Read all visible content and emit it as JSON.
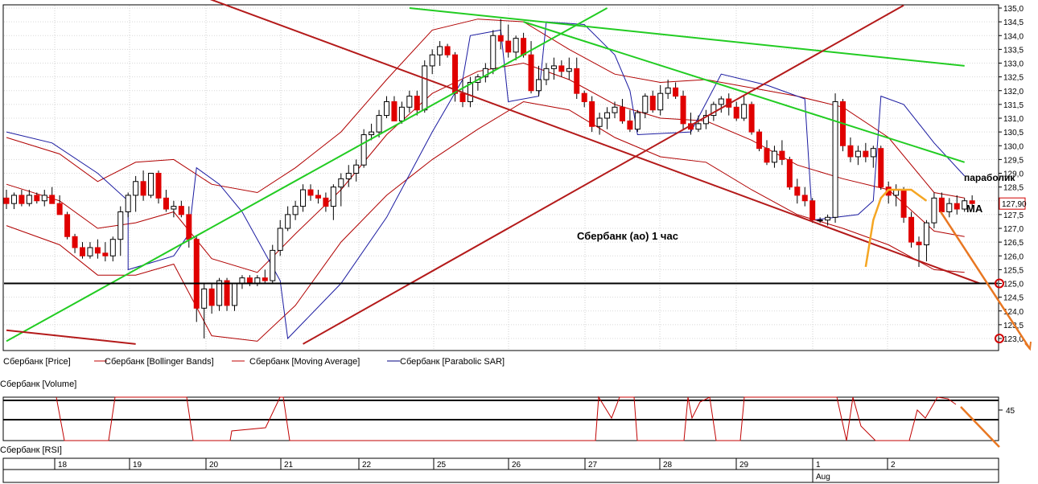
{
  "chart_data": {
    "type": "candlestick",
    "instrument": "Сбербанк",
    "ylim": [
      122.8,
      135.1
    ],
    "y_ticks": [
      "135,0",
      "134,5",
      "134,0",
      "133,5",
      "133,0",
      "132,5",
      "132,0",
      "131,5",
      "131,0",
      "130,5",
      "130,0",
      "129,5",
      "129,0",
      "128,5",
      "128,0",
      "127,5",
      "127,0",
      "126,5",
      "126,0",
      "125,5",
      "125,0",
      "124,5",
      "124,0",
      "123,5",
      "123,0"
    ],
    "y_tick_values": [
      135.0,
      134.5,
      134.0,
      133.5,
      133.0,
      132.5,
      132.0,
      131.5,
      131.0,
      130.5,
      130.0,
      129.5,
      129.0,
      128.5,
      128.0,
      127.5,
      127.0,
      126.5,
      126.0,
      125.5,
      125.0,
      124.5,
      124.0,
      123.5,
      123.0
    ],
    "last_price_label": "127,90",
    "last_price": 127.9,
    "support_level": 125.0,
    "target_markers": [
      125.0,
      123.0
    ],
    "day_labels": [
      "18",
      "19",
      "20",
      "21",
      "22",
      "25",
      "26",
      "27",
      "28",
      "29",
      "1",
      "2"
    ],
    "month_label": "Aug",
    "legend": [
      "Сбербанк [Price]",
      "Сбербанк [Bollinger Bands]",
      "Сбербанк [Moving Average]",
      "Сбербанк [Parabolic SAR]"
    ],
    "candles": [
      [
        128.1,
        128.4,
        127.7,
        127.9
      ],
      [
        127.9,
        128.3,
        127.7,
        128.2
      ],
      [
        128.2,
        128.4,
        127.8,
        127.9
      ],
      [
        127.9,
        128.4,
        127.8,
        128.2
      ],
      [
        128.2,
        128.3,
        127.9,
        128.0
      ],
      [
        128.0,
        128.4,
        127.8,
        128.2
      ],
      [
        128.2,
        128.5,
        127.9,
        127.9
      ],
      [
        127.9,
        128.2,
        127.5,
        127.5
      ],
      [
        127.5,
        127.6,
        126.6,
        126.7
      ],
      [
        126.7,
        126.8,
        126.1,
        126.3
      ],
      [
        126.3,
        126.5,
        125.9,
        126.0
      ],
      [
        126.0,
        126.5,
        125.9,
        126.3
      ],
      [
        126.3,
        126.6,
        125.9,
        126.1
      ],
      [
        126.1,
        126.5,
        125.8,
        126.0
      ],
      [
        126.0,
        126.7,
        125.8,
        126.6
      ],
      [
        126.6,
        127.8,
        126.0,
        127.6
      ],
      [
        127.6,
        128.3,
        127.4,
        128.2
      ],
      [
        128.2,
        128.9,
        127.6,
        128.7
      ],
      [
        128.7,
        129.1,
        128.0,
        128.2
      ],
      [
        128.2,
        129.0,
        128.1,
        129.0
      ],
      [
        129.0,
        129.1,
        127.9,
        128.1
      ],
      [
        128.1,
        128.4,
        127.6,
        127.7
      ],
      [
        127.7,
        128.0,
        127.4,
        127.8
      ],
      [
        127.8,
        128.0,
        127.4,
        127.5
      ],
      [
        127.5,
        127.8,
        126.3,
        126.6
      ],
      [
        126.6,
        126.7,
        123.6,
        124.1
      ],
      [
        124.1,
        125.0,
        123.0,
        124.8
      ],
      [
        124.8,
        125.0,
        123.9,
        124.2
      ],
      [
        124.2,
        125.2,
        124.0,
        125.1
      ],
      [
        125.1,
        125.2,
        124.0,
        124.2
      ],
      [
        124.2,
        125.0,
        124.0,
        125.0
      ],
      [
        125.0,
        125.3,
        124.8,
        125.2
      ],
      [
        125.2,
        125.3,
        124.9,
        125.0
      ],
      [
        125.0,
        125.3,
        124.9,
        125.2
      ],
      [
        125.2,
        125.5,
        125.0,
        125.1
      ],
      [
        125.1,
        126.4,
        125.0,
        126.2
      ],
      [
        126.2,
        127.3,
        126.0,
        127.0
      ],
      [
        127.0,
        127.8,
        126.9,
        127.5
      ],
      [
        127.5,
        128.0,
        127.3,
        127.8
      ],
      [
        127.8,
        128.6,
        127.6,
        128.4
      ],
      [
        128.4,
        128.6,
        128.0,
        128.2
      ],
      [
        128.2,
        128.4,
        127.9,
        128.1
      ],
      [
        128.1,
        128.3,
        127.6,
        127.8
      ],
      [
        127.8,
        128.6,
        127.3,
        128.5
      ],
      [
        128.5,
        129.0,
        127.8,
        128.8
      ],
      [
        128.8,
        129.3,
        128.5,
        129.0
      ],
      [
        129.0,
        129.5,
        128.7,
        129.3
      ],
      [
        129.3,
        130.6,
        129.2,
        130.4
      ],
      [
        130.4,
        130.8,
        130.2,
        130.5
      ],
      [
        130.5,
        131.3,
        130.3,
        131.1
      ],
      [
        131.1,
        131.8,
        131.0,
        131.6
      ],
      [
        131.6,
        131.8,
        130.9,
        130.9
      ],
      [
        130.9,
        131.6,
        130.8,
        131.4
      ],
      [
        131.4,
        132.0,
        131.2,
        131.8
      ],
      [
        131.8,
        132.0,
        131.1,
        131.3
      ],
      [
        131.3,
        133.1,
        131.2,
        132.9
      ],
      [
        132.9,
        133.5,
        132.6,
        133.3
      ],
      [
        133.3,
        133.8,
        132.9,
        133.6
      ],
      [
        133.6,
        133.7,
        133.2,
        133.3
      ],
      [
        133.3,
        133.4,
        131.6,
        131.9
      ],
      [
        131.9,
        132.4,
        131.4,
        131.6
      ],
      [
        131.6,
        132.5,
        131.4,
        132.3
      ],
      [
        132.3,
        132.6,
        132.0,
        132.5
      ],
      [
        132.5,
        133.0,
        132.3,
        132.8
      ],
      [
        132.8,
        134.2,
        132.6,
        134.0
      ],
      [
        134.0,
        134.6,
        133.5,
        133.8
      ],
      [
        133.8,
        134.4,
        133.2,
        133.4
      ],
      [
        133.4,
        134.0,
        133.1,
        133.9
      ],
      [
        133.9,
        134.1,
        133.2,
        133.3
      ],
      [
        133.3,
        133.8,
        131.9,
        132.0
      ],
      [
        132.0,
        132.9,
        131.8,
        132.4
      ],
      [
        132.4,
        133.0,
        132.2,
        132.8
      ],
      [
        132.8,
        133.2,
        132.4,
        132.9
      ],
      [
        132.9,
        133.1,
        132.5,
        132.7
      ],
      [
        132.7,
        133.2,
        132.4,
        132.8
      ],
      [
        132.8,
        133.2,
        131.7,
        131.9
      ],
      [
        131.9,
        132.0,
        131.4,
        131.6
      ],
      [
        131.6,
        131.8,
        130.5,
        130.7
      ],
      [
        130.7,
        131.2,
        130.4,
        131.0
      ],
      [
        131.0,
        131.4,
        130.6,
        131.2
      ],
      [
        131.2,
        131.6,
        131.0,
        131.4
      ],
      [
        131.4,
        131.7,
        130.8,
        130.9
      ],
      [
        130.9,
        131.3,
        130.5,
        130.6
      ],
      [
        130.6,
        131.3,
        130.5,
        131.2
      ],
      [
        131.2,
        131.9,
        131.0,
        131.8
      ],
      [
        131.8,
        132.0,
        131.2,
        131.3
      ],
      [
        131.3,
        132.2,
        131.1,
        131.9
      ],
      [
        131.9,
        132.4,
        131.7,
        132.1
      ],
      [
        132.1,
        132.3,
        131.7,
        131.8
      ],
      [
        131.8,
        132.0,
        130.6,
        130.8
      ],
      [
        130.8,
        131.2,
        130.4,
        130.6
      ],
      [
        130.6,
        131.1,
        130.5,
        130.8
      ],
      [
        130.8,
        131.3,
        130.6,
        131.1
      ],
      [
        131.1,
        131.6,
        130.9,
        131.5
      ],
      [
        131.5,
        131.8,
        131.2,
        131.7
      ],
      [
        131.7,
        131.9,
        131.1,
        131.4
      ],
      [
        131.4,
        131.6,
        130.9,
        131.0
      ],
      [
        131.0,
        131.8,
        130.9,
        131.5
      ],
      [
        131.5,
        131.6,
        130.4,
        130.5
      ],
      [
        130.5,
        130.6,
        129.8,
        129.9
      ],
      [
        129.9,
        130.2,
        129.3,
        129.4
      ],
      [
        129.4,
        130.0,
        129.2,
        129.8
      ],
      [
        129.8,
        130.2,
        129.3,
        129.5
      ],
      [
        129.5,
        129.6,
        128.4,
        128.5
      ],
      [
        128.5,
        128.8,
        127.9,
        128.2
      ],
      [
        128.2,
        128.5,
        127.8,
        128.0
      ],
      [
        128.0,
        128.1,
        127.2,
        127.3
      ],
      [
        127.3,
        127.4,
        127.2,
        127.3
      ],
      [
        127.3,
        127.5,
        127.1,
        127.4
      ],
      [
        127.4,
        131.9,
        127.2,
        131.6
      ],
      [
        131.6,
        131.7,
        129.8,
        130.0
      ],
      [
        130.0,
        130.3,
        129.4,
        129.6
      ],
      [
        129.6,
        130.0,
        129.3,
        129.8
      ],
      [
        129.8,
        130.1,
        129.4,
        129.6
      ],
      [
        129.6,
        130.0,
        129.2,
        129.9
      ],
      [
        129.9,
        130.0,
        128.4,
        128.5
      ],
      [
        128.5,
        128.7,
        127.9,
        128.2
      ],
      [
        128.2,
        128.6,
        127.8,
        128.4
      ],
      [
        128.4,
        128.5,
        127.2,
        127.4
      ],
      [
        127.4,
        127.6,
        126.3,
        126.5
      ],
      [
        126.5,
        126.7,
        125.6,
        126.4
      ],
      [
        126.4,
        127.3,
        125.8,
        127.2
      ],
      [
        127.2,
        128.3,
        127.0,
        128.1
      ],
      [
        128.1,
        128.3,
        127.5,
        127.6
      ],
      [
        127.6,
        128.1,
        127.4,
        127.9
      ],
      [
        127.9,
        128.2,
        127.5,
        127.7
      ],
      [
        127.7,
        128.1,
        127.6,
        128.0
      ],
      [
        128.0,
        128.2,
        127.7,
        127.9
      ]
    ],
    "bollinger_upper": [
      [
        0,
        130.3
      ],
      [
        7,
        129.7
      ],
      [
        12,
        128.7
      ],
      [
        17,
        129.4
      ],
      [
        22,
        129.5
      ],
      [
        27,
        128.6
      ],
      [
        33,
        128.3
      ],
      [
        38,
        129.2
      ],
      [
        44,
        130.5
      ],
      [
        50,
        132.4
      ],
      [
        56,
        134.2
      ],
      [
        62,
        134.6
      ],
      [
        68,
        134.5
      ],
      [
        74,
        133.5
      ],
      [
        80,
        132.6
      ],
      [
        86,
        132.3
      ],
      [
        92,
        132.4
      ],
      [
        98,
        132.1
      ],
      [
        104,
        131.8
      ],
      [
        110,
        131.4
      ],
      [
        116,
        130.3
      ],
      [
        122,
        128.3
      ],
      [
        126,
        128.1
      ]
    ],
    "bollinger_lower": [
      [
        0,
        127.1
      ],
      [
        7,
        126.4
      ],
      [
        12,
        125.3
      ],
      [
        17,
        125.3
      ],
      [
        22,
        125.7
      ],
      [
        27,
        123.1
      ],
      [
        33,
        122.9
      ],
      [
        38,
        124.2
      ],
      [
        44,
        126.5
      ],
      [
        50,
        128.2
      ],
      [
        56,
        129.5
      ],
      [
        62,
        130.6
      ],
      [
        68,
        131.6
      ],
      [
        74,
        131.3
      ],
      [
        80,
        130.3
      ],
      [
        86,
        129.6
      ],
      [
        92,
        129.4
      ],
      [
        98,
        128.4
      ],
      [
        104,
        127.5
      ],
      [
        110,
        127.0
      ],
      [
        116,
        126.4
      ],
      [
        122,
        125.5
      ],
      [
        126,
        125.4
      ]
    ],
    "moving_average": [
      [
        0,
        128.6
      ],
      [
        7,
        128.0
      ],
      [
        12,
        127.0
      ],
      [
        17,
        127.2
      ],
      [
        22,
        127.6
      ],
      [
        27,
        125.9
      ],
      [
        33,
        125.4
      ],
      [
        38,
        126.8
      ],
      [
        44,
        128.4
      ],
      [
        50,
        130.4
      ],
      [
        56,
        131.9
      ],
      [
        62,
        132.7
      ],
      [
        68,
        133.0
      ],
      [
        74,
        132.4
      ],
      [
        80,
        131.5
      ],
      [
        86,
        131.0
      ],
      [
        92,
        130.9
      ],
      [
        98,
        130.2
      ],
      [
        104,
        129.3
      ],
      [
        110,
        128.8
      ],
      [
        116,
        128.4
      ],
      [
        122,
        126.9
      ],
      [
        126,
        126.7
      ]
    ],
    "parabolic_sar": [
      [
        0,
        130.5
      ],
      [
        6,
        130.1
      ],
      [
        12,
        129.0
      ],
      [
        16,
        128.0
      ],
      [
        16,
        125.5
      ],
      [
        22,
        126.0
      ],
      [
        24,
        126.8
      ],
      [
        25,
        129.2
      ],
      [
        28,
        128.6
      ],
      [
        31,
        127.6
      ],
      [
        36,
        125.1
      ],
      [
        37,
        123.0
      ],
      [
        44,
        125.0
      ],
      [
        50,
        127.4
      ],
      [
        56,
        130.5
      ],
      [
        60,
        132.4
      ],
      [
        61,
        134.0
      ],
      [
        65,
        134.2
      ],
      [
        66,
        131.6
      ],
      [
        70,
        131.8
      ],
      [
        71,
        134.5
      ],
      [
        76,
        134.4
      ],
      [
        80,
        133.3
      ],
      [
        82,
        132.0
      ],
      [
        83,
        130.4
      ],
      [
        90,
        130.5
      ],
      [
        94,
        132.6
      ],
      [
        100,
        132.2
      ],
      [
        105,
        131.7
      ],
      [
        106,
        127.3
      ],
      [
        112,
        127.5
      ],
      [
        114,
        128.0
      ],
      [
        115,
        131.8
      ],
      [
        118,
        131.5
      ],
      [
        122,
        130.1
      ],
      [
        126,
        128.9
      ]
    ],
    "trendlines_green": [
      [
        [
          0,
          122.9
        ],
        [
          79,
          135.0
        ]
      ],
      [
        [
          53,
          135.0
        ],
        [
          126,
          132.9
        ]
      ],
      [
        [
          68,
          134.5
        ],
        [
          126,
          129.4
        ]
      ]
    ],
    "trendlines_red": [
      [
        [
          26,
          135.4
        ],
        [
          128,
          125.0
        ]
      ],
      [
        [
          0,
          123.3
        ],
        [
          17,
          122.8
        ]
      ],
      [
        [
          39,
          122.8
        ],
        [
          118,
          135.1
        ]
      ]
    ],
    "orange_curve": [
      [
        113,
        125.6
      ],
      [
        114,
        127.3
      ],
      [
        115,
        128.1
      ],
      [
        116,
        128.4
      ],
      [
        119,
        128.4
      ],
      [
        121,
        128.0
      ]
    ],
    "orange_arrows": [
      [
        [
          122,
          127.9
        ],
        [
          128,
          123.2
        ]
      ]
    ],
    "volume_ylabel": "45",
    "annotations": {
      "title": "Сбербанк (ао)   1 час",
      "parabolic": "параболик",
      "ma": "MA"
    },
    "panel_labels": {
      "volume": "Сбербанк [Volume]",
      "rsi": "Сбербанк [RSI]"
    }
  }
}
